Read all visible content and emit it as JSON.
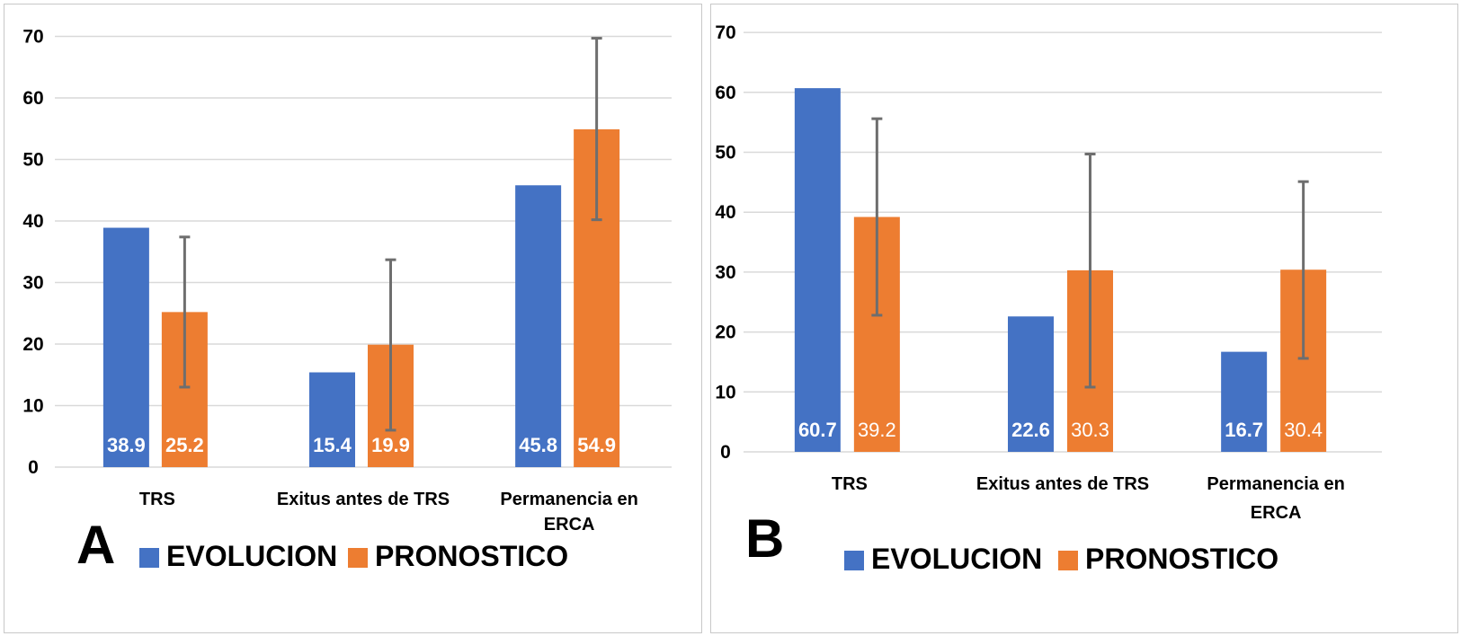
{
  "chart_data": [
    {
      "type": "bar",
      "panel_label": "A",
      "categories": [
        "TRS",
        "Exitus antes de TRS",
        "Permanencia en ERCA"
      ],
      "category_lines": [
        [
          "TRS"
        ],
        [
          "Exitus antes de TRS"
        ],
        [
          "Permanencia en",
          "ERCA"
        ]
      ],
      "series": [
        {
          "name": "EVOLUCION",
          "color": "#4472C4",
          "values": [
            38.9,
            15.4,
            45.8
          ],
          "labels": [
            "38.9",
            "15.4",
            "45.8"
          ]
        },
        {
          "name": "PRONOSTICO",
          "color": "#ED7D31",
          "values": [
            25.2,
            19.9,
            54.9
          ],
          "labels": [
            "25.2",
            "19.9",
            "54.9"
          ],
          "error_low": [
            13.0,
            6.0,
            40.2
          ],
          "error_high": [
            37.4,
            33.7,
            69.7
          ]
        }
      ],
      "ylim": [
        0,
        70
      ],
      "yticks": [
        0,
        10,
        20,
        30,
        40,
        50,
        60,
        70
      ],
      "ytick_labels": [
        "0",
        "10",
        "20",
        "30",
        "40",
        "50",
        "60",
        "70"
      ],
      "grid": true,
      "legend": "bottom",
      "title": "",
      "xlabel": "",
      "ylabel": "",
      "label_style": "bold"
    },
    {
      "type": "bar",
      "panel_label": "B",
      "categories": [
        "TRS",
        "Exitus antes de TRS",
        "Permanencia en ERCA"
      ],
      "category_lines": [
        [
          "TRS"
        ],
        [
          "Exitus antes de TRS"
        ],
        [
          "Permanencia en",
          "ERCA"
        ]
      ],
      "series": [
        {
          "name": "EVOLUCION",
          "color": "#4472C4",
          "values": [
            60.7,
            22.6,
            16.7
          ],
          "labels": [
            "60.7",
            "22.6",
            "16.7"
          ]
        },
        {
          "name": "PRONOSTICO",
          "color": "#ED7D31",
          "values": [
            39.2,
            30.3,
            30.4
          ],
          "labels": [
            "39.2",
            "30.3",
            "30.4"
          ],
          "error_low": [
            22.8,
            10.8,
            15.6
          ],
          "error_high": [
            55.6,
            49.7,
            45.1
          ]
        }
      ],
      "ylim": [
        0,
        70
      ],
      "yticks": [
        0,
        10,
        20,
        30,
        40,
        50,
        60,
        70
      ],
      "ytick_labels": [
        "0",
        "10",
        "20",
        "30",
        "40",
        "50",
        "60",
        "70"
      ],
      "grid": true,
      "legend": "bottom",
      "title": "",
      "xlabel": "",
      "ylabel": "",
      "label_style": "mixed"
    }
  ],
  "colors": {
    "evolucion": "#4472C4",
    "pronostico": "#ED7D31",
    "grid": "#d9d9d9",
    "error_bar": "#6e6e6e"
  }
}
